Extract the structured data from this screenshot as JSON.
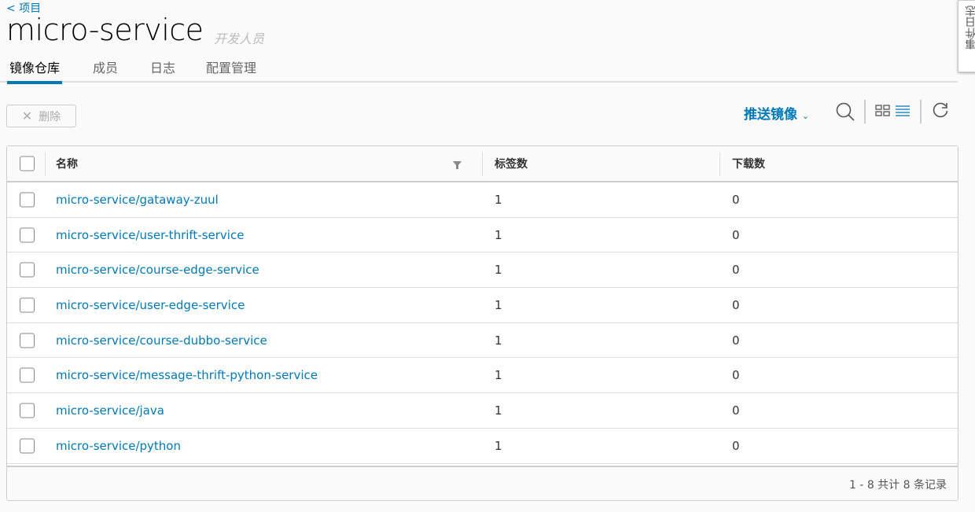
{
  "header": {
    "back": "< 项目",
    "title": "micro-service",
    "role": "开发人员"
  },
  "tabs": [
    {
      "label": "镜像仓库",
      "active": true
    },
    {
      "label": "成员"
    },
    {
      "label": "日志"
    },
    {
      "label": "配置管理"
    }
  ],
  "toolbar": {
    "delete": "删除",
    "push": "推送镜像"
  },
  "side_panel": "事件日志",
  "table": {
    "columns": [
      "名称",
      "标签数",
      "下载数"
    ],
    "rows": [
      {
        "name": "micro-service/gataway-zuul",
        "tags": "1",
        "pulls": "0"
      },
      {
        "name": "micro-service/user-thrift-service",
        "tags": "1",
        "pulls": "0"
      },
      {
        "name": "micro-service/course-edge-service",
        "tags": "1",
        "pulls": "0"
      },
      {
        "name": "micro-service/user-edge-service",
        "tags": "1",
        "pulls": "0"
      },
      {
        "name": "micro-service/course-dubbo-service",
        "tags": "1",
        "pulls": "0"
      },
      {
        "name": "micro-service/message-thrift-python-service",
        "tags": "1",
        "pulls": "0"
      },
      {
        "name": "micro-service/java",
        "tags": "1",
        "pulls": "0"
      },
      {
        "name": "micro-service/python",
        "tags": "1",
        "pulls": "0"
      }
    ],
    "footer": "1 - 8 共计 8 条记录"
  },
  "colors": {
    "accent": "#0079b8"
  }
}
